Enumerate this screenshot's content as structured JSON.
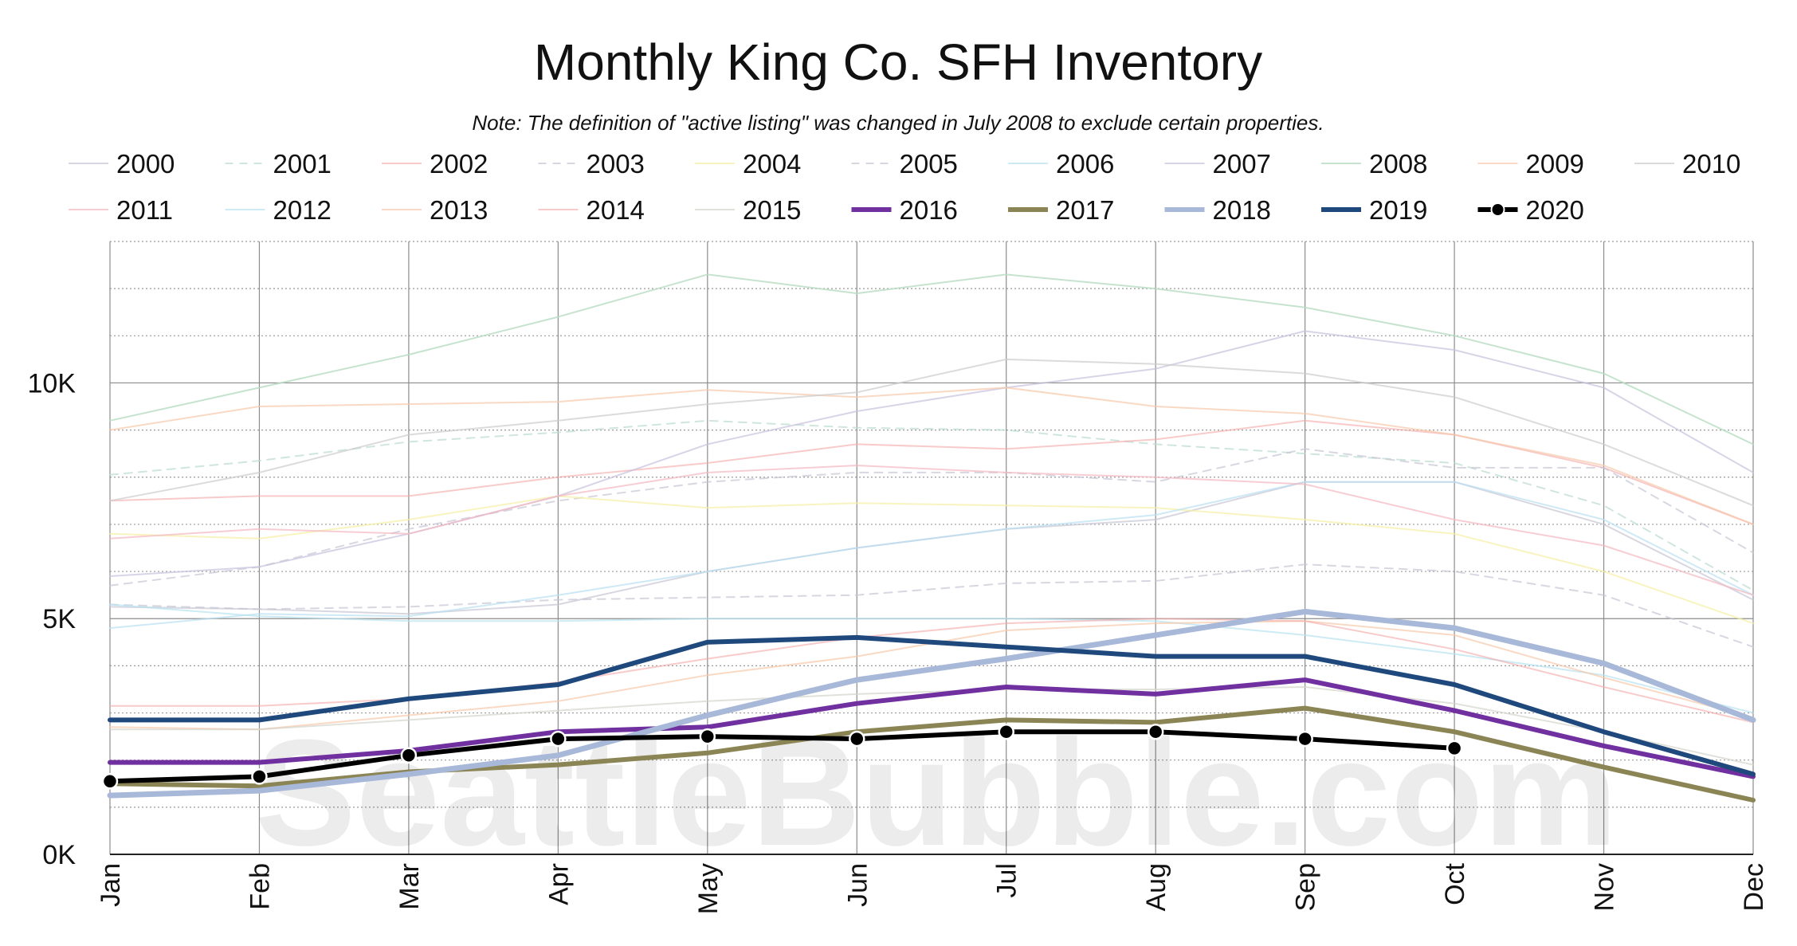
{
  "chart_data": {
    "type": "line",
    "title": "Monthly King Co. SFH Inventory",
    "subtitle": "Note: The definition of \"active listing\" was changed in July 2008 to exclude certain properties.",
    "watermark": "SeattleBubble.com",
    "categories": [
      "Jan",
      "Feb",
      "Mar",
      "Apr",
      "May",
      "Jun",
      "Jul",
      "Aug",
      "Sep",
      "Oct",
      "Nov",
      "Dec"
    ],
    "ylim": [
      0,
      13000
    ],
    "yticks": [
      {
        "value": 0,
        "label": "0K"
      },
      {
        "value": 5000,
        "label": "5K"
      },
      {
        "value": 10000,
        "label": "10K"
      }
    ],
    "minor_gridlines": [
      1000,
      2000,
      3000,
      4000,
      6000,
      7000,
      8000,
      9000,
      11000,
      12000
    ],
    "grid": true,
    "legend_position": "top",
    "series": [
      {
        "name": "2000",
        "color": "#c6c6d4",
        "style": "solid",
        "width": 2,
        "opacity": 0.7,
        "values": [
          5250,
          5200,
          5100,
          5300,
          6000,
          6500,
          6900,
          7100,
          7900,
          7900,
          7000,
          5400
        ]
      },
      {
        "name": "2001",
        "color": "#b9dccd",
        "style": "dashed",
        "width": 2,
        "opacity": 0.7,
        "values": [
          8050,
          8350,
          8750,
          8950,
          9200,
          9050,
          9000,
          8700,
          8500,
          8300,
          7400,
          5600
        ]
      },
      {
        "name": "2002",
        "color": "#f3a6a6",
        "style": "solid",
        "width": 2,
        "opacity": 0.6,
        "values": [
          7500,
          7600,
          7600,
          8000,
          8300,
          8700,
          8600,
          8800,
          9200,
          8900,
          8200,
          7000
        ]
      },
      {
        "name": "2003",
        "color": "#c6c6d4",
        "style": "dashed",
        "width": 2,
        "opacity": 0.7,
        "values": [
          5700,
          6100,
          6900,
          7500,
          7900,
          8100,
          8100,
          7900,
          8600,
          8200,
          8200,
          6400
        ]
      },
      {
        "name": "2004",
        "color": "#f7f0a4",
        "style": "solid",
        "width": 2,
        "opacity": 0.7,
        "values": [
          6800,
          6700,
          7100,
          7600,
          7350,
          7450,
          7400,
          7350,
          7100,
          6800,
          6000,
          4900
        ]
      },
      {
        "name": "2005",
        "color": "#c6c6d4",
        "style": "dashed",
        "width": 2,
        "opacity": 0.7,
        "values": [
          5300,
          5200,
          5250,
          5400,
          5450,
          5500,
          5750,
          5800,
          6150,
          6000,
          5500,
          4400
        ]
      },
      {
        "name": "2006",
        "color": "#b9e0f2",
        "style": "solid",
        "width": 2,
        "opacity": 0.7,
        "values": [
          4800,
          5100,
          5050,
          5500,
          6000,
          6500,
          6900,
          7200,
          7900,
          7900,
          7100,
          5500
        ]
      },
      {
        "name": "2007",
        "color": "#c9c0dd",
        "style": "solid",
        "width": 2,
        "opacity": 0.7,
        "values": [
          5900,
          6100,
          6800,
          7600,
          8700,
          9400,
          9900,
          10300,
          11100,
          10700,
          9900,
          8100
        ]
      },
      {
        "name": "2008",
        "color": "#b6dcc2",
        "style": "solid",
        "width": 2,
        "opacity": 0.8,
        "values": [
          9200,
          9900,
          10600,
          11400,
          12300,
          11900,
          12300,
          12000,
          11600,
          11000,
          10200,
          8700
        ]
      },
      {
        "name": "2009",
        "color": "#f6c9aa",
        "style": "solid",
        "width": 2,
        "opacity": 0.7,
        "values": [
          9000,
          9500,
          9550,
          9600,
          9850,
          9700,
          9900,
          9500,
          9350,
          8900,
          8250,
          7000
        ]
      },
      {
        "name": "2010",
        "color": "#cccccc",
        "style": "solid",
        "width": 2,
        "opacity": 0.7,
        "values": [
          7500,
          8100,
          8900,
          9200,
          9550,
          9800,
          10500,
          10400,
          10200,
          9700,
          8700,
          7400
        ]
      },
      {
        "name": "2011",
        "color": "#f3b8c0",
        "style": "solid",
        "width": 2,
        "opacity": 0.7,
        "values": [
          6700,
          6900,
          6800,
          7600,
          8100,
          8250,
          8100,
          8000,
          7850,
          7100,
          6550,
          5500
        ]
      },
      {
        "name": "2012",
        "color": "#b7e3ef",
        "style": "solid",
        "width": 2,
        "opacity": 0.7,
        "values": [
          5300,
          5050,
          4950,
          4950,
          5000,
          5000,
          5000,
          4950,
          4650,
          4250,
          3800,
          3000
        ]
      },
      {
        "name": "2013",
        "color": "#f6c9aa",
        "style": "solid",
        "width": 2,
        "opacity": 0.7,
        "values": [
          2700,
          2650,
          2950,
          3250,
          3800,
          4200,
          4750,
          4900,
          4950,
          4650,
          3750,
          2900
        ]
      },
      {
        "name": "2014",
        "color": "#f3a6a6",
        "style": "solid",
        "width": 2,
        "opacity": 0.6,
        "values": [
          3150,
          3150,
          3300,
          3650,
          4150,
          4600,
          4900,
          5000,
          4950,
          4350,
          3550,
          2800
        ]
      },
      {
        "name": "2015",
        "color": "#d4d4cc",
        "style": "solid",
        "width": 2,
        "opacity": 0.7,
        "values": [
          2650,
          2650,
          2850,
          3050,
          3250,
          3400,
          3500,
          3500,
          3550,
          3200,
          2600,
          1900
        ]
      },
      {
        "name": "2016",
        "color": "#7030a0",
        "style": "solid",
        "width": 6,
        "opacity": 1,
        "values": [
          1950,
          1950,
          2200,
          2600,
          2700,
          3200,
          3550,
          3400,
          3700,
          3050,
          2300,
          1650
        ]
      },
      {
        "name": "2017",
        "color": "#8b8454",
        "style": "solid",
        "width": 6,
        "opacity": 1,
        "values": [
          1500,
          1450,
          1750,
          1900,
          2150,
          2600,
          2850,
          2800,
          3100,
          2600,
          1850,
          1150
        ]
      },
      {
        "name": "2018",
        "color": "#a8b8d8",
        "style": "solid",
        "width": 7,
        "opacity": 1,
        "values": [
          1250,
          1350,
          1700,
          2100,
          2950,
          3700,
          4150,
          4650,
          5150,
          4800,
          4050,
          2850
        ]
      },
      {
        "name": "2019",
        "color": "#1f497d",
        "style": "solid",
        "width": 6,
        "opacity": 1,
        "values": [
          2850,
          2850,
          3300,
          3600,
          4500,
          4600,
          4400,
          4200,
          4200,
          3600,
          2600,
          1700
        ]
      },
      {
        "name": "2020",
        "color": "#000000",
        "style": "solid",
        "width": 6,
        "opacity": 1,
        "markers": true,
        "values": [
          1550,
          1650,
          2100,
          2450,
          2500,
          2450,
          2600,
          2600,
          2450,
          2250,
          null,
          null
        ]
      }
    ]
  }
}
